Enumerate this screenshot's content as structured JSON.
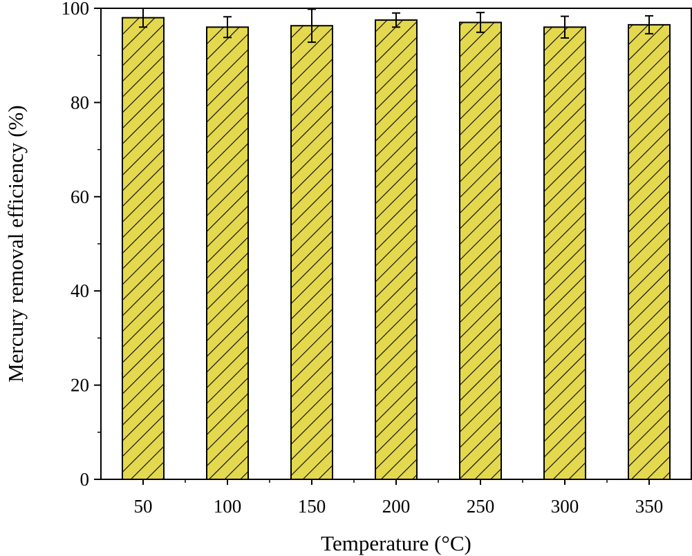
{
  "chart_data": {
    "type": "bar",
    "title": "",
    "xlabel": "Temperature (°C)",
    "ylabel": "Mercury removal efficiency (%)",
    "categories": [
      "50",
      "100",
      "150",
      "200",
      "250",
      "300",
      "350"
    ],
    "values": [
      98.0,
      96.0,
      96.3,
      97.5,
      97.0,
      96.0,
      96.5
    ],
    "errors": [
      2.0,
      2.2,
      3.5,
      1.5,
      2.1,
      2.3,
      1.9
    ],
    "ylim": [
      0,
      100
    ],
    "yticks": [
      "0",
      "20",
      "40",
      "60",
      "80",
      "100"
    ],
    "grid": false,
    "bar_color": "#e3d84e",
    "bar_pattern": "diagonal-hatch",
    "edge_color": "#000000"
  }
}
